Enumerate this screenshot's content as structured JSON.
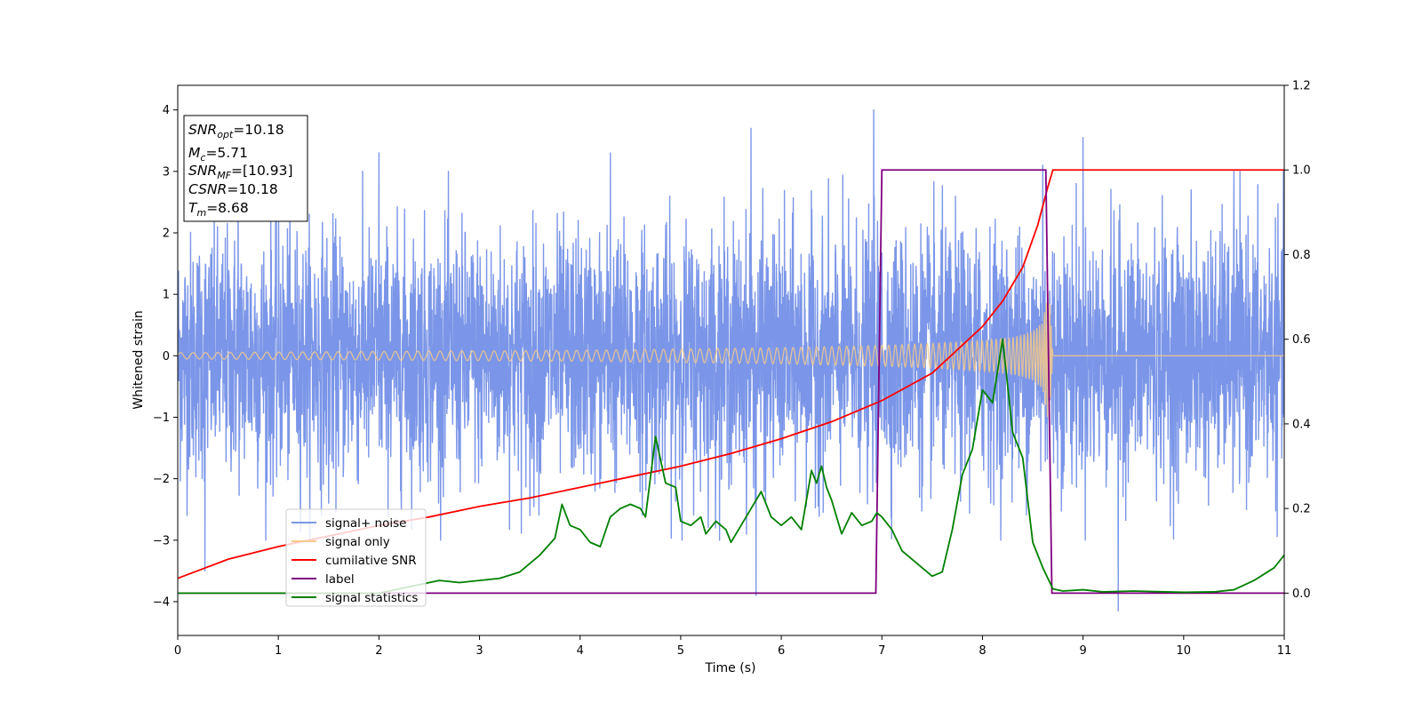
{
  "chart_data": {
    "type": "line",
    "xlabel": "Time (s)",
    "ylabel": "Whitened strain",
    "xlim": [
      0,
      11
    ],
    "ylim": [
      -4.55,
      4.4
    ],
    "y2lim": [
      -0.1,
      1.2
    ],
    "x_ticks": [
      "0",
      "1",
      "2",
      "3",
      "4",
      "5",
      "6",
      "7",
      "8",
      "9",
      "10",
      "11"
    ],
    "y_ticks": [
      "4",
      "3",
      "2",
      "1",
      "0",
      "−1",
      "−2",
      "−3",
      "−4"
    ],
    "y2_ticks": [
      "1.2",
      "1.0",
      "0.8",
      "0.6",
      "0.4",
      "0.2",
      "0.0"
    ],
    "grid": false,
    "info_box": {
      "lines": [
        {
          "base": "SNR",
          "sub": "opt",
          "value": "=10.18"
        },
        {
          "base": "M",
          "sub": "c",
          "value": "=5.71"
        },
        {
          "base": "SNR",
          "sub": "MF",
          "value": "=[10.93]"
        },
        {
          "base": "CSNR",
          "sub": "",
          "value": "=10.18"
        },
        {
          "base": "T",
          "sub": "m",
          "value": "=8.68"
        }
      ]
    },
    "legend": {
      "position": "lower-left",
      "entries": [
        {
          "label": "signal+ noise",
          "color": "#7b96e8"
        },
        {
          "label": "signal only",
          "color": "#f5c98a"
        },
        {
          "label": "cumilative SNR",
          "color": "#ff0000"
        },
        {
          "label": "label",
          "color": "#800080"
        },
        {
          "label": "signal statistics",
          "color": "#008000"
        }
      ]
    },
    "series": [
      {
        "name": "signal+ noise",
        "axis": "left",
        "color": "#7b96e8",
        "description_envelope": {
          "typical_amplitude": 1.8,
          "max_peak": 4.0,
          "min_peak": -4.15
        },
        "spikes": [
          [
            0.27,
            -3.5
          ],
          [
            0.6,
            3.1
          ],
          [
            1.5,
            -2.4
          ],
          [
            2.0,
            3.3
          ],
          [
            3.5,
            -2.6
          ],
          [
            4.3,
            3.3
          ],
          [
            5.7,
            3.7
          ],
          [
            5.75,
            -3.9
          ],
          [
            6.92,
            4.0
          ],
          [
            8.6,
            3.1
          ],
          [
            9.0,
            3.55
          ],
          [
            9.35,
            -4.15
          ],
          [
            10.5,
            3.0
          ]
        ]
      },
      {
        "name": "signal only",
        "axis": "left",
        "color": "#f5c98a",
        "envelope": [
          [
            0,
            0.05
          ],
          [
            1,
            0.06
          ],
          [
            2,
            0.07
          ],
          [
            3,
            0.08
          ],
          [
            4,
            0.09
          ],
          [
            5,
            0.11
          ],
          [
            6,
            0.13
          ],
          [
            6.5,
            0.15
          ],
          [
            7,
            0.17
          ],
          [
            7.5,
            0.2
          ],
          [
            8,
            0.25
          ],
          [
            8.3,
            0.3
          ],
          [
            8.5,
            0.4
          ],
          [
            8.6,
            0.55
          ],
          [
            8.66,
            1.2
          ],
          [
            8.7,
            0.0
          ],
          [
            11,
            0.0
          ]
        ]
      },
      {
        "name": "cumilative SNR",
        "axis": "right",
        "color": "#ff0000",
        "x": [
          0,
          0.5,
          1,
          1.5,
          2,
          2.5,
          3,
          3.5,
          4,
          4.5,
          5,
          5.5,
          6,
          6.5,
          7,
          7.5,
          8,
          8.2,
          8.4,
          8.55,
          8.65,
          8.7,
          11
        ],
        "y": [
          0.035,
          0.08,
          0.11,
          0.135,
          0.16,
          0.18,
          0.205,
          0.225,
          0.25,
          0.275,
          0.3,
          0.33,
          0.365,
          0.405,
          0.455,
          0.52,
          0.63,
          0.69,
          0.77,
          0.87,
          0.96,
          1.0,
          1.0
        ]
      },
      {
        "name": "label",
        "axis": "right",
        "color": "#800080",
        "x": [
          0,
          6.94,
          7.0,
          8.63,
          8.69,
          11
        ],
        "y": [
          0.0,
          0.0,
          1.0,
          1.0,
          0.0,
          0.0
        ]
      },
      {
        "name": "signal statistics",
        "axis": "right",
        "color": "#008000",
        "x": [
          0,
          1,
          2,
          2.4,
          2.6,
          2.8,
          3.0,
          3.2,
          3.4,
          3.6,
          3.75,
          3.82,
          3.9,
          4.0,
          4.1,
          4.2,
          4.3,
          4.4,
          4.5,
          4.6,
          4.65,
          4.75,
          4.85,
          4.95,
          5.0,
          5.1,
          5.2,
          5.25,
          5.35,
          5.45,
          5.5,
          5.6,
          5.7,
          5.8,
          5.9,
          6.0,
          6.1,
          6.2,
          6.3,
          6.35,
          6.4,
          6.45,
          6.5,
          6.6,
          6.7,
          6.8,
          6.9,
          6.95,
          7.0,
          7.1,
          7.2,
          7.3,
          7.4,
          7.5,
          7.6,
          7.7,
          7.8,
          7.9,
          8.0,
          8.1,
          8.2,
          8.3,
          8.4,
          8.5,
          8.6,
          8.7,
          8.8,
          9.0,
          9.2,
          9.5,
          10.0,
          10.3,
          10.5,
          10.7,
          10.9,
          11.0
        ],
        "y": [
          0.0,
          0.0,
          0.0,
          0.02,
          0.03,
          0.025,
          0.03,
          0.035,
          0.05,
          0.09,
          0.13,
          0.21,
          0.16,
          0.15,
          0.12,
          0.11,
          0.18,
          0.2,
          0.21,
          0.2,
          0.18,
          0.37,
          0.26,
          0.25,
          0.17,
          0.16,
          0.18,
          0.14,
          0.17,
          0.15,
          0.12,
          0.16,
          0.2,
          0.24,
          0.18,
          0.16,
          0.18,
          0.15,
          0.29,
          0.26,
          0.3,
          0.25,
          0.22,
          0.14,
          0.19,
          0.16,
          0.17,
          0.19,
          0.18,
          0.15,
          0.1,
          0.08,
          0.06,
          0.04,
          0.05,
          0.15,
          0.28,
          0.34,
          0.48,
          0.45,
          0.6,
          0.38,
          0.32,
          0.12,
          0.06,
          0.01,
          0.005,
          0.008,
          0.003,
          0.005,
          0.002,
          0.003,
          0.008,
          0.03,
          0.06,
          0.09
        ]
      }
    ]
  }
}
